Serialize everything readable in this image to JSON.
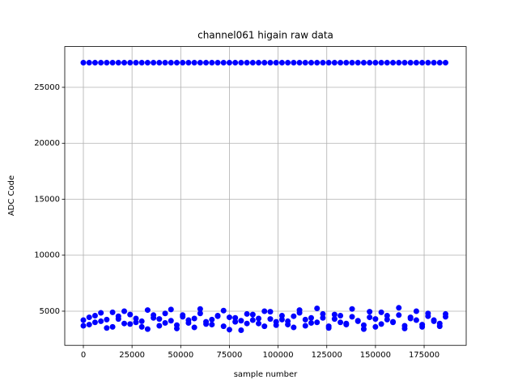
{
  "chart_data": {
    "type": "scatter",
    "title": "channel061 higain raw data",
    "x_label": "sample number",
    "y_label": "ADC Code",
    "color": "#0000ff",
    "grid": true,
    "xlim": [
      -9560,
      196600
    ],
    "ylim": [
      1950,
      28640
    ],
    "xticks": [
      0,
      25000,
      50000,
      75000,
      100000,
      125000,
      150000,
      175000
    ],
    "yticks": [
      5000,
      10000,
      15000,
      20000,
      25000
    ],
    "x": [
      0,
      3000,
      6000,
      9000,
      12000,
      15000,
      18000,
      21000,
      24000,
      27000,
      30000,
      33000,
      36000,
      39000,
      42000,
      45000,
      48000,
      51000,
      54000,
      57000,
      60000,
      63000,
      66000,
      69000,
      72000,
      75000,
      78000,
      81000,
      84000,
      87000,
      90000,
      93000,
      96000,
      99000,
      102000,
      105000,
      108000,
      111000,
      114000,
      117000,
      120000,
      123000,
      126000,
      129000,
      132000,
      135000,
      138000,
      141000,
      144000,
      147000,
      150000,
      153000,
      156000,
      159000,
      162000,
      165000,
      168000,
      171000,
      174000,
      177000,
      180000,
      183000,
      186000,
      0,
      3000,
      6000,
      9000,
      12000,
      15000,
      18000,
      21000,
      24000,
      27000,
      30000,
      33000,
      36000,
      39000,
      42000,
      45000,
      48000,
      51000,
      54000,
      57000,
      60000,
      63000,
      66000,
      69000,
      72000,
      75000,
      78000,
      81000,
      84000,
      87000,
      90000,
      93000,
      96000,
      99000,
      102000,
      105000,
      108000,
      111000,
      114000,
      117000,
      120000,
      123000,
      126000,
      129000,
      132000,
      135000,
      138000,
      141000,
      144000,
      147000,
      150000,
      153000,
      156000,
      159000,
      162000,
      165000,
      168000,
      171000,
      174000,
      177000,
      180000,
      183000,
      186000,
      0,
      3000,
      6000,
      9000,
      12000,
      15000,
      18000,
      21000,
      24000,
      27000,
      30000,
      33000,
      36000,
      39000,
      42000,
      45000,
      48000,
      51000,
      54000,
      57000,
      60000,
      63000,
      66000,
      69000,
      72000,
      75000,
      78000,
      81000,
      84000,
      87000,
      90000,
      93000,
      96000,
      99000,
      102000,
      105000,
      108000,
      111000,
      114000,
      117000,
      120000,
      123000,
      126000,
      129000,
      132000,
      135000,
      138000,
      141000,
      144000,
      147000,
      150000,
      153000,
      156000,
      159000,
      162000,
      165000,
      168000,
      171000,
      174000,
      177000,
      180000,
      183000,
      186000
    ],
    "values": [
      27200,
      27200,
      27200,
      27200,
      27200,
      27200,
      27200,
      27200,
      27200,
      27200,
      27200,
      27200,
      27200,
      27200,
      27200,
      27200,
      27200,
      27200,
      27200,
      27200,
      27200,
      27200,
      27200,
      27200,
      27200,
      27200,
      27200,
      27200,
      27200,
      27200,
      27200,
      27200,
      27200,
      27200,
      27200,
      27200,
      27200,
      27200,
      27200,
      27200,
      27200,
      27200,
      27200,
      27200,
      27200,
      27200,
      27200,
      27200,
      27200,
      27200,
      27200,
      27200,
      27200,
      27200,
      27200,
      27200,
      27200,
      27200,
      27200,
      27200,
      27200,
      27200,
      27200,
      4200,
      3800,
      4600,
      4100,
      3500,
      4900,
      4300,
      3900,
      4700,
      4000,
      3600,
      5100,
      4400,
      3700,
      4800,
      4150,
      3450,
      4650,
      3950,
      4350,
      5200,
      3850,
      4250,
      4550,
      3650,
      4450,
      4050,
      3300,
      4750,
      4200,
      3900,
      5000,
      4300,
      3750,
      4600,
      4100,
      3550,
      4850,
      4250,
      3950,
      5250,
      4400,
      3650,
      4700,
      4000,
      3800,
      4500,
      4150,
      3400,
      4950,
      4300,
      3850,
      4600,
      4050,
      5300,
      3700,
      4450,
      4200,
      3600,
      4800,
      4100,
      3900,
      4500,
      3700,
      4450,
      4000,
      4850,
      4250,
      3600,
      4550,
      5000,
      3850,
      4350,
      4100,
      3400,
      4650,
      4300,
      3950,
      5150,
      3750,
      4500,
      4200,
      3550,
      4800,
      4050,
      3800,
      4600,
      5050,
      3350,
      4400,
      4150,
      3900,
      4700,
      4350,
      3650,
      4950,
      4050,
      4250,
      3800,
      4550,
      5100,
      3700,
      4400,
      4000,
      4750,
      3500,
      4300,
      4600,
      3900,
      5200,
      4100,
      3750,
      4450,
      3600,
      4900,
      4250,
      4000,
      4650,
      3450,
      4350,
      5000,
      3800,
      4550,
      4200,
      3650,
      4750
    ]
  }
}
